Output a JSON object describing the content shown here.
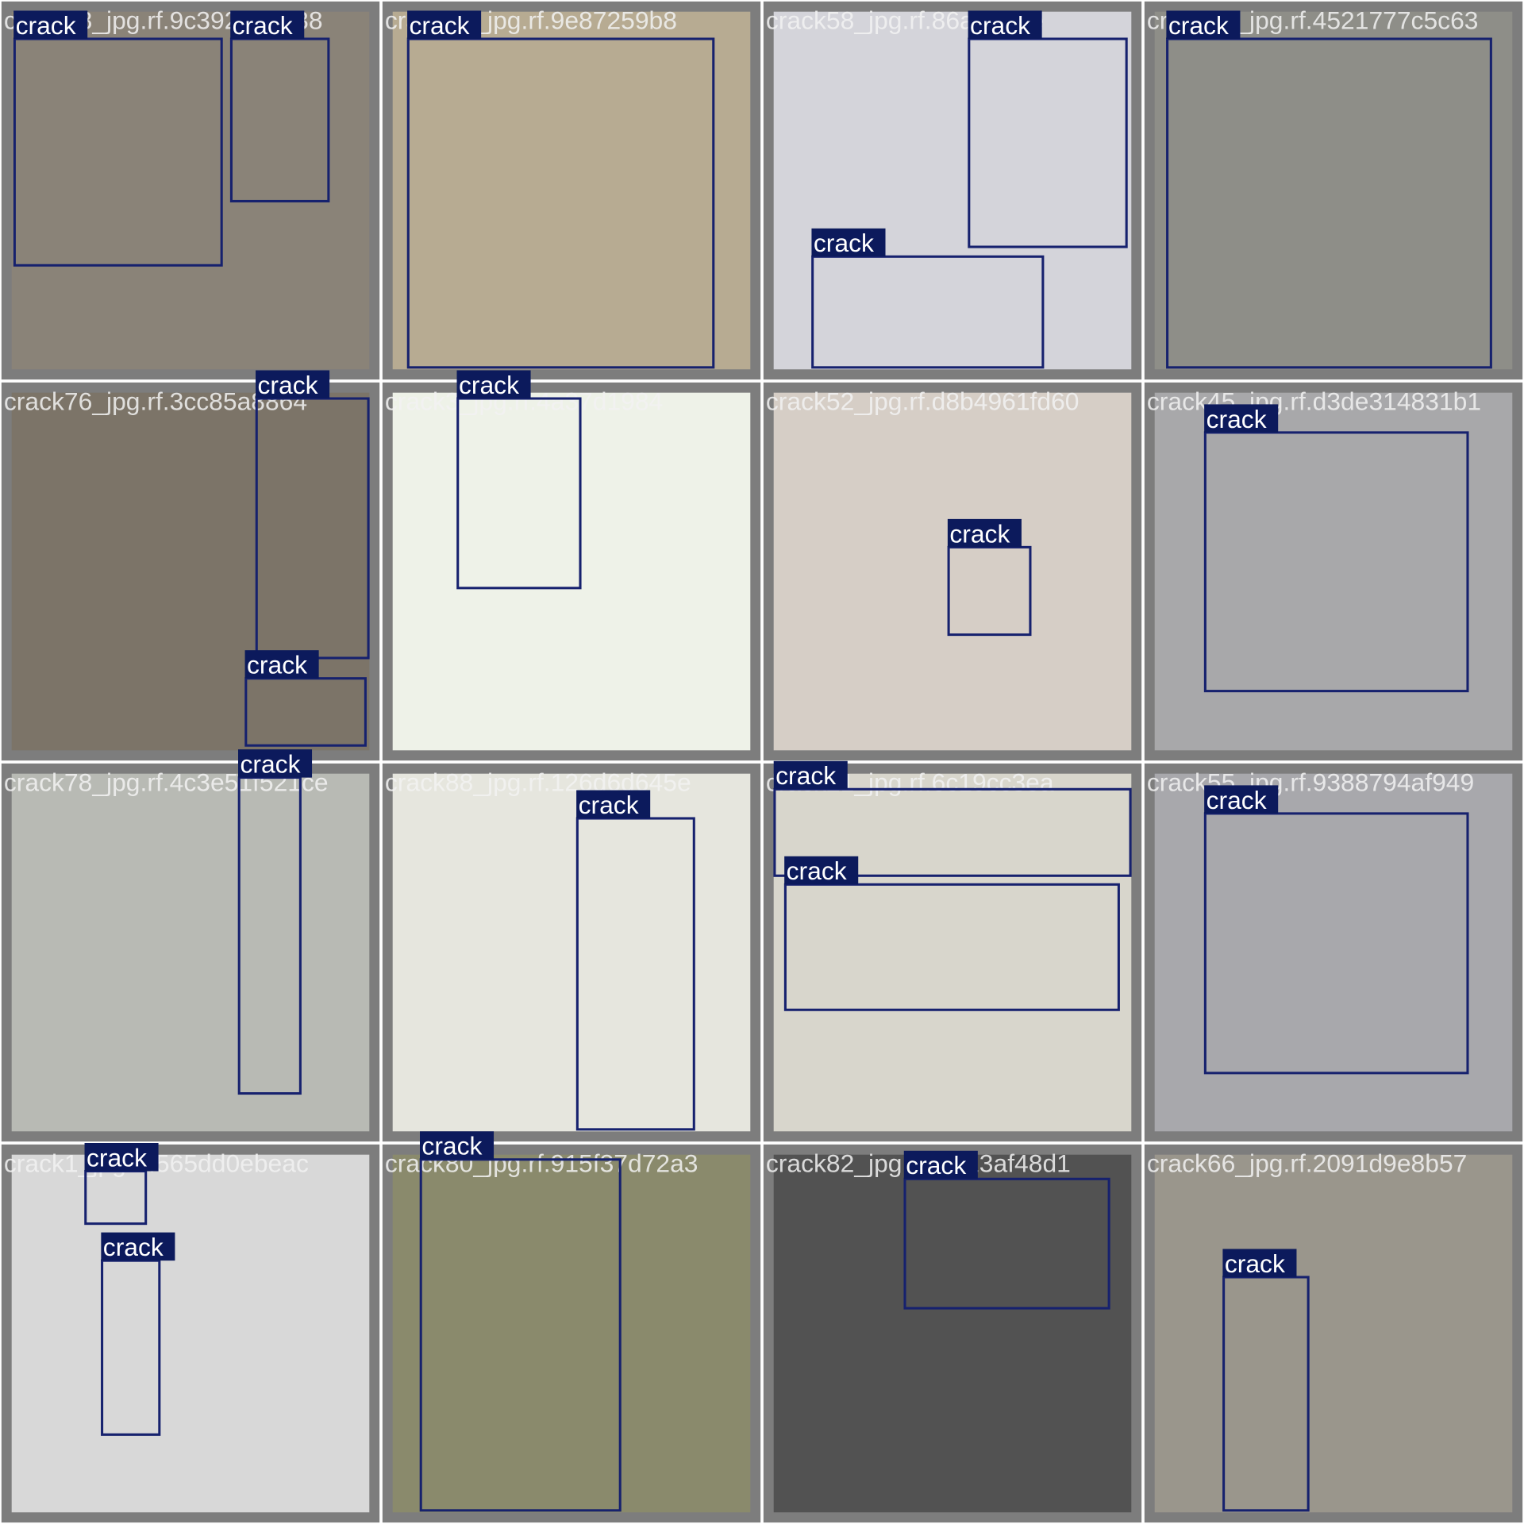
{
  "images": [
    {
      "filename": "crack68_jpg.rf.9c3925d8938",
      "boxes": [
        {
          "label": "crack"
        },
        {
          "label": "crack"
        }
      ]
    },
    {
      "filename": "crack49_jpg.rf.9e87259b8",
      "boxes": [
        {
          "label": "crack"
        }
      ]
    },
    {
      "filename": "crack58_jpg.rf.86ad828e",
      "boxes": [
        {
          "label": "crack"
        },
        {
          "label": "crack"
        }
      ]
    },
    {
      "filename": "crack45_jpg.rf.4521777c5c63",
      "boxes": [
        {
          "label": "crack"
        }
      ]
    },
    {
      "filename": "crack76_jpg.rf.3cc85a8864",
      "boxes": [
        {
          "label": "crack"
        },
        {
          "label": "crack"
        }
      ]
    },
    {
      "filename": "crack3_jpg.rf.4a37d1984",
      "boxes": [
        {
          "label": "crack"
        }
      ]
    },
    {
      "filename": "crack52_jpg.rf.d8b4961fd60",
      "boxes": [
        {
          "label": "crack"
        }
      ]
    },
    {
      "filename": "crack45_jpg.rf.d3de314831b1",
      "boxes": [
        {
          "label": "crack"
        }
      ]
    },
    {
      "filename": "crack78_jpg.rf.4c3e51f521ce",
      "boxes": [
        {
          "label": "crack"
        }
      ]
    },
    {
      "filename": "crack88_jpg.rf.126d6d645e",
      "boxes": [
        {
          "label": "crack"
        }
      ]
    },
    {
      "filename": "crack21_jpg.rf.6c19cc3ea",
      "boxes": [
        {
          "label": "crack"
        },
        {
          "label": "crack"
        }
      ]
    },
    {
      "filename": "crack55_jpg.rf.9388794af949",
      "boxes": [
        {
          "label": "crack"
        }
      ]
    },
    {
      "filename": "crack1_jpg.rf.565dd0ebeac",
      "boxes": [
        {
          "label": "crack"
        },
        {
          "label": "crack"
        }
      ]
    },
    {
      "filename": "crack80_jpg.rf.915f37d72a3",
      "boxes": [
        {
          "label": "crack"
        }
      ]
    },
    {
      "filename": "crack82_jpg.rf.0fc13af48d1",
      "boxes": [
        {
          "label": "crack"
        }
      ]
    },
    {
      "filename": "crack66_jpg.rf.2091d9e8b57",
      "boxes": [
        {
          "label": "crack"
        }
      ]
    }
  ]
}
